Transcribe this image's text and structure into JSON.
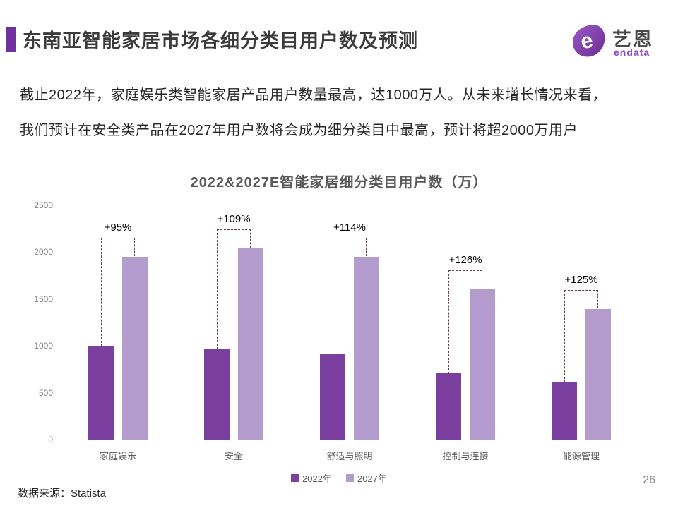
{
  "header": {
    "title": "东南亚智能家居市场各细分类目用户数及预测",
    "accent_color": "#7030A0",
    "logo": {
      "brand_cn": "艺恩",
      "brand_en": "endata",
      "color": "#8a4bbf"
    }
  },
  "summary": {
    "line1": "截止2022年，家庭娱乐类智能家居产品用户数量最高，达1000万人。从未来增长情况来看，",
    "line2": "我们预计在安全类产品在2027年用户数将会成为细分类目中最高，预计将超2000万用户"
  },
  "chart_data": {
    "type": "bar",
    "title": "2022&2027E智能家居细分类目用户数（万）",
    "categories": [
      "家庭娱乐",
      "安全",
      "舒适与照明",
      "控制与连接",
      "能源管理"
    ],
    "series": [
      {
        "name": "2022年",
        "color": "#7B3FA0",
        "values": [
          1000,
          975,
          910,
          710,
          620
        ]
      },
      {
        "name": "2027年",
        "color": "#B49BCE",
        "values": [
          1950,
          2040,
          1950,
          1605,
          1395
        ]
      }
    ],
    "growth_labels": [
      "+95%",
      "+109%",
      "+114%",
      "+126%",
      "+125%"
    ],
    "ylim": [
      0,
      2500
    ],
    "yticks": [
      0,
      500,
      1000,
      1500,
      2000,
      2500
    ],
    "grid": false,
    "legend_position": "bottom",
    "annotation_color": "#6d3a45",
    "axis_line_color": "#d9d9d9"
  },
  "footer": {
    "source": "数据来源：Statista",
    "page": "26"
  }
}
